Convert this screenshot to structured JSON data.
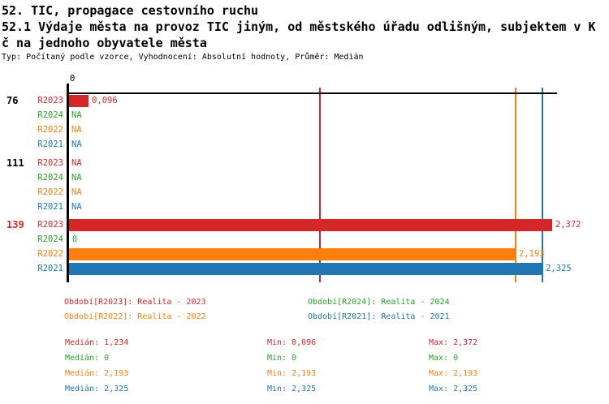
{
  "header": {
    "line1": "52. TIC, propagace cestovního ruchu",
    "line2": "52.1 Výdaje města na provoz TIC jiným, od městského úřadu odlišným, subjektem v K",
    "line3": "č na jednoho obyvatele města",
    "meta": "Typ: Počítaný podle vzorce, Vyhodnocení: Absolutní hodnoty, Průměr: Medián"
  },
  "colors": {
    "R2023": "#d62728",
    "R2024": "#2ca02c",
    "R2022": "#ff7f0e",
    "R2021": "#1f77b4",
    "axis": "#000000"
  },
  "chart_data": {
    "type": "bar",
    "orientation": "horizontal",
    "x_tick": "0",
    "xlim": [
      0,
      2.4
    ],
    "grid": false,
    "groups": [
      {
        "id": "76",
        "id_color": "#000000",
        "rows": [
          {
            "series": "R2023",
            "value": 0.096,
            "label": "0,096"
          },
          {
            "series": "R2024",
            "value": null,
            "label": "NA"
          },
          {
            "series": "R2022",
            "value": null,
            "label": "NA"
          },
          {
            "series": "R2021",
            "value": null,
            "label": "NA"
          }
        ]
      },
      {
        "id": "111",
        "id_color": "#000000",
        "rows": [
          {
            "series": "R2023",
            "value": null,
            "label": "NA"
          },
          {
            "series": "R2024",
            "value": null,
            "label": "NA"
          },
          {
            "series": "R2022",
            "value": null,
            "label": "NA"
          },
          {
            "series": "R2021",
            "value": null,
            "label": "NA"
          }
        ]
      },
      {
        "id": "139",
        "id_color": "#d62728",
        "rows": [
          {
            "series": "R2023",
            "value": 2.372,
            "label": "2,372"
          },
          {
            "series": "R2024",
            "value": 0,
            "label": "0"
          },
          {
            "series": "R2022",
            "value": 2.193,
            "label": "2,193"
          },
          {
            "series": "R2021",
            "value": 2.325,
            "label": "2,325"
          }
        ]
      }
    ],
    "reference_lines": [
      {
        "series": "R2023",
        "value": 1.234
      },
      {
        "series": "R2022",
        "value": 2.193
      },
      {
        "series": "R2021",
        "value": 2.325
      }
    ]
  },
  "legend": [
    {
      "series": "R2023",
      "label": "Období[R2023]: Realita - 2023"
    },
    {
      "series": "R2024",
      "label": "Období[R2024]: Realita - 2024"
    },
    {
      "series": "R2022",
      "label": "Období[R2022]: Realita - 2022"
    },
    {
      "series": "R2021",
      "label": "Období[R2021]: Realita - 2021"
    }
  ],
  "stats": [
    {
      "series": "R2023",
      "median": "Medián: 1,234",
      "min": "Min: 0,096",
      "max": "Max: 2,372"
    },
    {
      "series": "R2024",
      "median": "Medián: 0",
      "min": "Min: 0",
      "max": "Max: 0"
    },
    {
      "series": "R2022",
      "median": "Medián: 2,193",
      "min": "Min: 2,193",
      "max": "Max: 2,193"
    },
    {
      "series": "R2021",
      "median": "Medián: 2,325",
      "min": "Min: 2,325",
      "max": "Max: 2,325"
    }
  ]
}
